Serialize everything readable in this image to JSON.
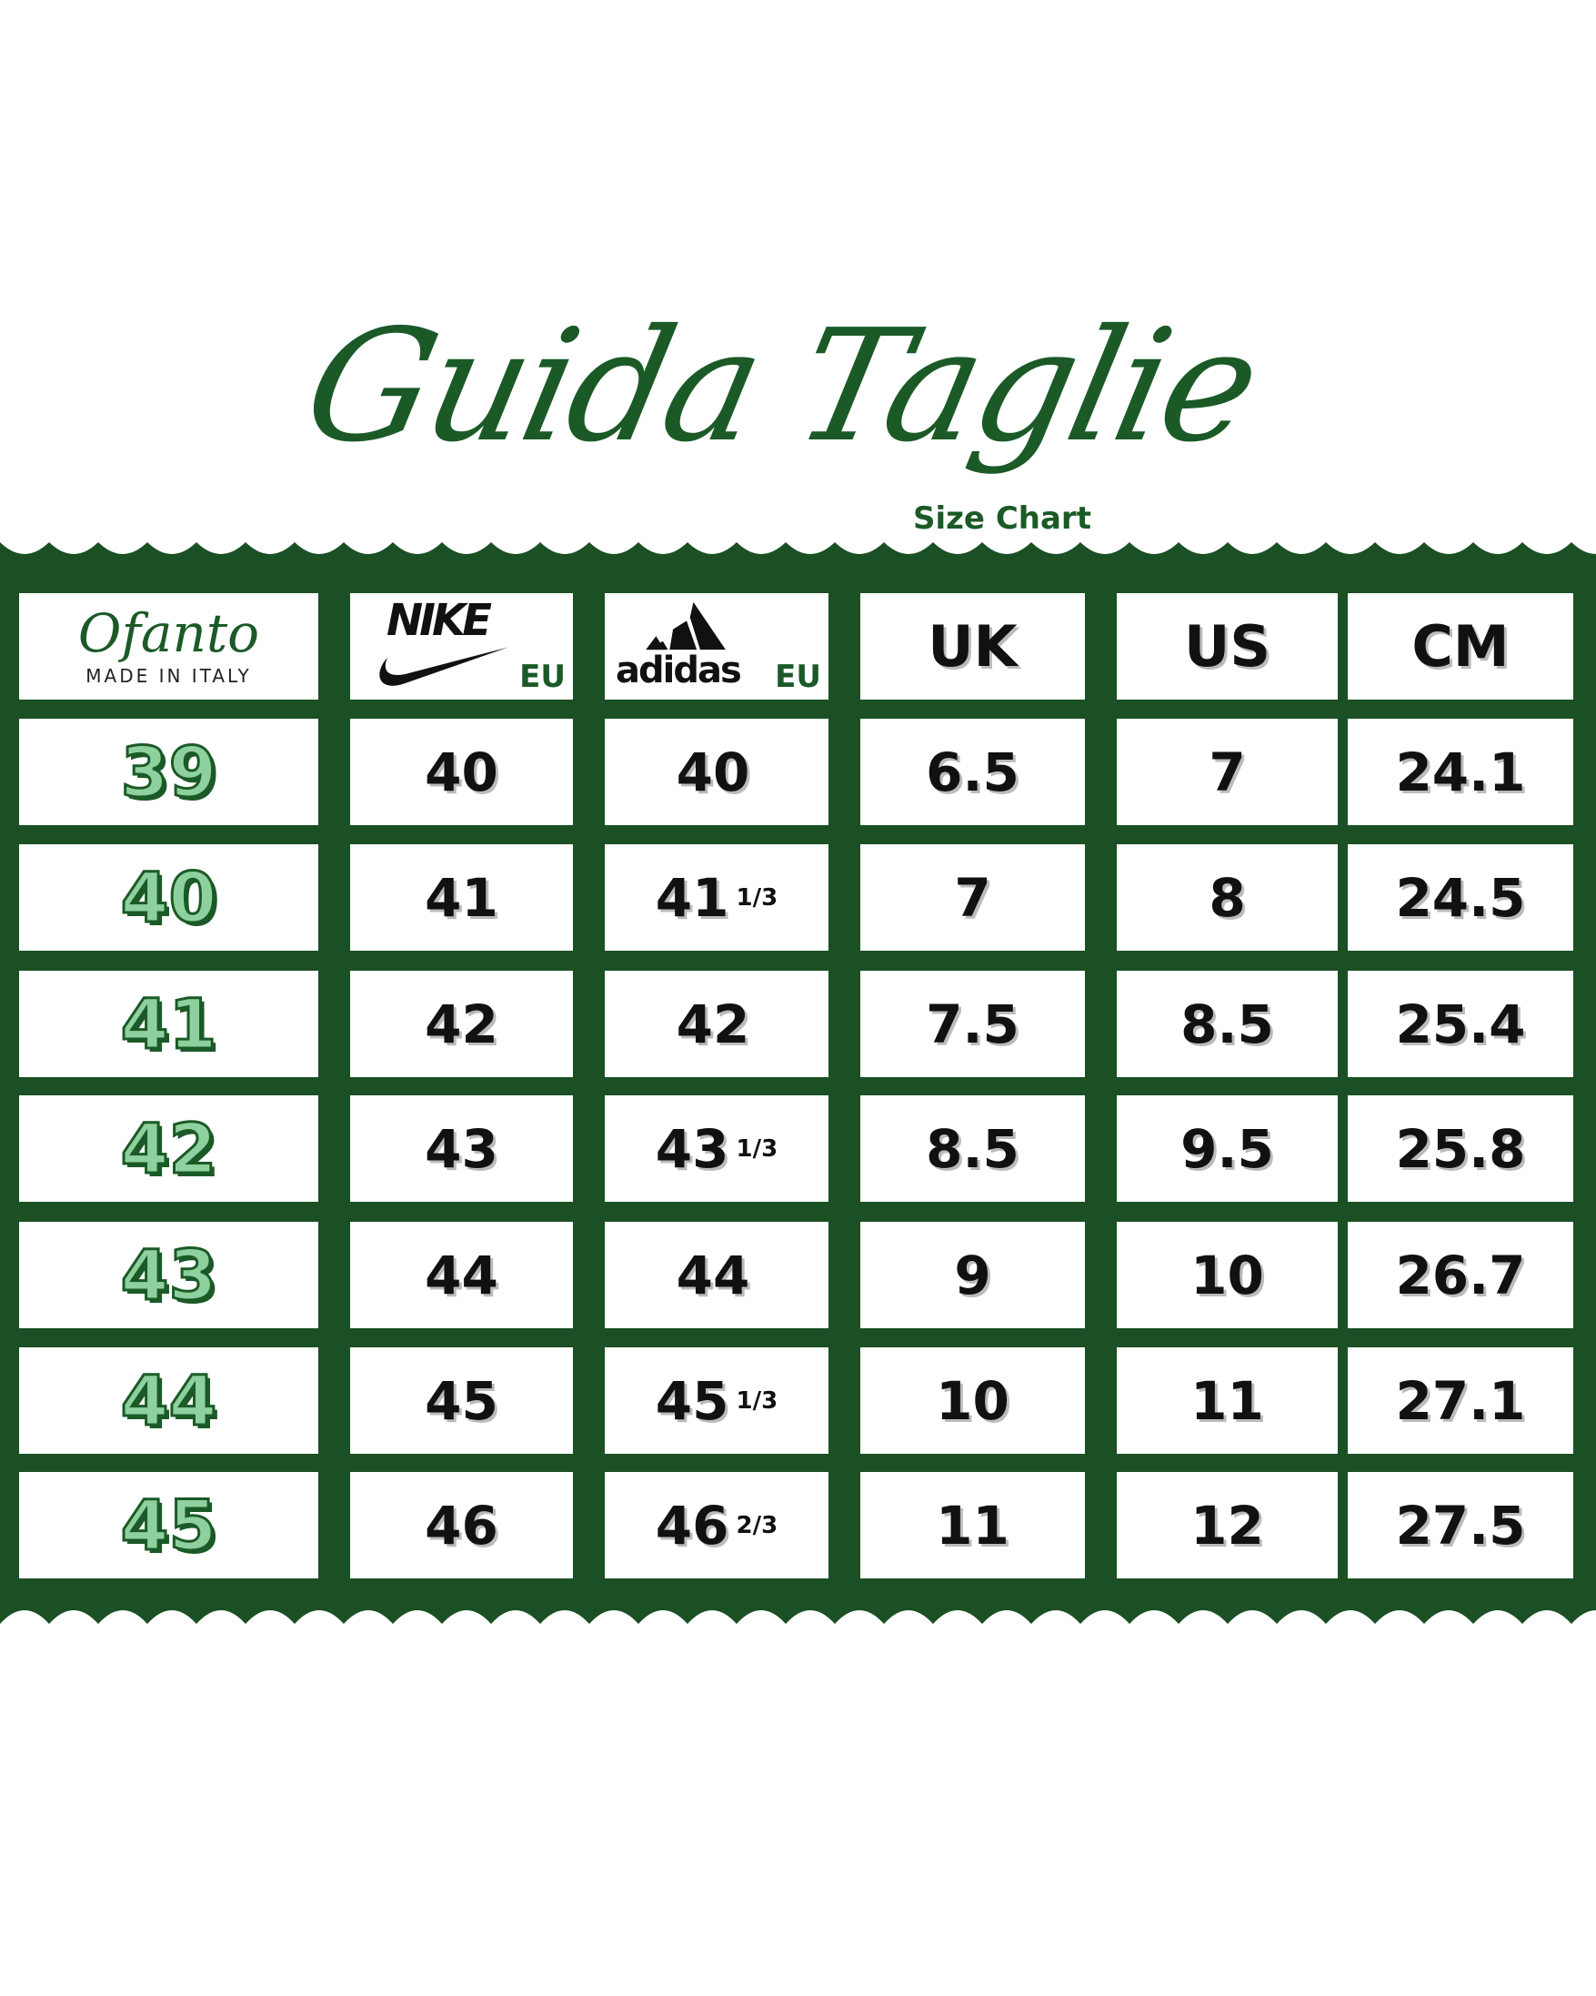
{
  "title": "Guida Taglie",
  "subtitle": "Size Chart",
  "colors": {
    "brand_green": "#1a5024",
    "cell_bg": "#ffffff",
    "text": "#111111"
  },
  "header": {
    "ofanto": {
      "brand": "Ofanto",
      "tagline": "MADE IN ITALY"
    },
    "nike": {
      "logo": "NIKE",
      "unit": "EU"
    },
    "adidas": {
      "logo": "adidas",
      "unit": "EU"
    },
    "uk": "UK",
    "us": "US",
    "cm": "CM"
  },
  "rows": [
    {
      "ofanto": "39",
      "nike": "40",
      "adidas": "40",
      "adidas_frac": "",
      "uk": "6.5",
      "us": "7",
      "cm": "24.1"
    },
    {
      "ofanto": "40",
      "nike": "41",
      "adidas": "41",
      "adidas_frac": "1/3",
      "uk": "7",
      "us": "8",
      "cm": "24.5"
    },
    {
      "ofanto": "41",
      "nike": "42",
      "adidas": "42",
      "adidas_frac": "",
      "uk": "7.5",
      "us": "8.5",
      "cm": "25.4"
    },
    {
      "ofanto": "42",
      "nike": "43",
      "adidas": "43",
      "adidas_frac": "1/3",
      "uk": "8.5",
      "us": "9.5",
      "cm": "25.8"
    },
    {
      "ofanto": "43",
      "nike": "44",
      "adidas": "44",
      "adidas_frac": "",
      "uk": "9",
      "us": "10",
      "cm": "26.7"
    },
    {
      "ofanto": "44",
      "nike": "45",
      "adidas": "45",
      "adidas_frac": "1/3",
      "uk": "10",
      "us": "11",
      "cm": "27.1"
    },
    {
      "ofanto": "45",
      "nike": "46",
      "adidas": "46",
      "adidas_frac": "2/3",
      "uk": "11",
      "us": "12",
      "cm": "27.5"
    }
  ]
}
